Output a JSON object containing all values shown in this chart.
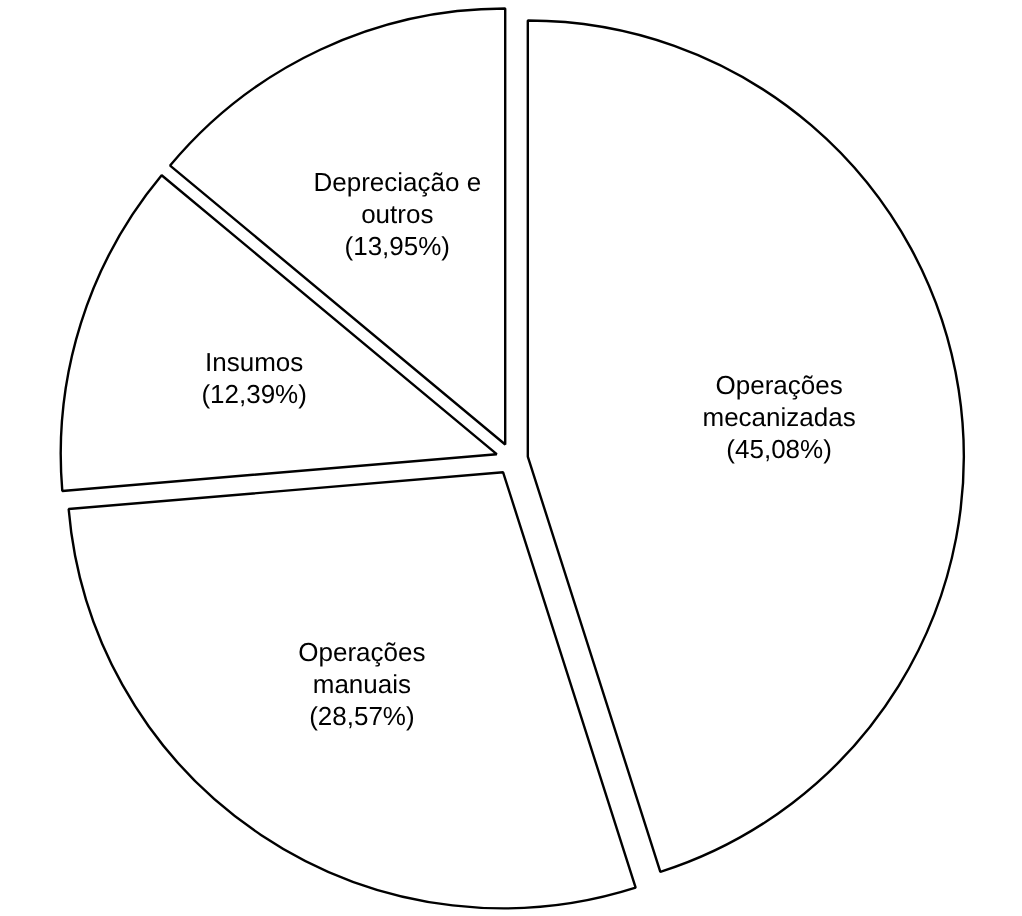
{
  "chart_data": {
    "type": "pie",
    "categories": [
      "Operações mecanizadas",
      "Operações manuais",
      "Insumos",
      "Depreciação e outros"
    ],
    "values": [
      45.08,
      28.57,
      12.39,
      13.95
    ],
    "value_labels": [
      "(45,08%)",
      "(28,57%)",
      "(12,39%)",
      "(13,95%)"
    ],
    "colors": [
      "#ffffff",
      "#ffffff",
      "#ffffff",
      "#ffffff"
    ]
  }
}
